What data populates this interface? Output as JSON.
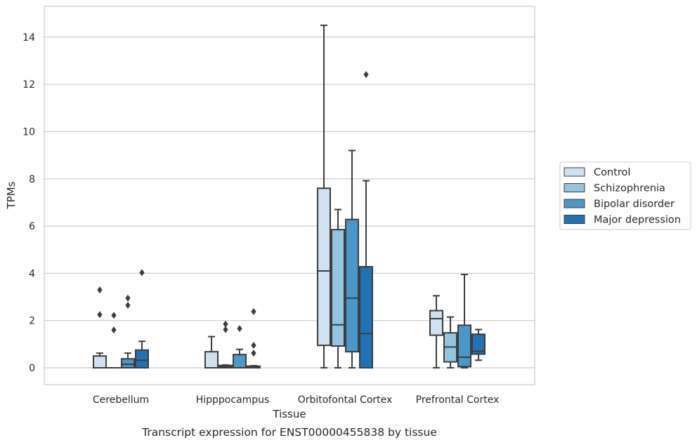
{
  "chart_data": {
    "type": "boxplot",
    "xlabel": "Tissue",
    "ylabel": "TPMs",
    "caption": "Transcript expression for ENST00000455838 by tissue",
    "ylim": [
      -0.7,
      15.3
    ],
    "yticks": [
      0,
      2,
      4,
      6,
      8,
      10,
      12,
      14
    ],
    "grid": "horizontal",
    "legend_position": "right",
    "categories": [
      "Cerebellum",
      "Hipppocampus",
      "Orbitofontal Cortex",
      "Prefrontal Cortex"
    ],
    "series": [
      {
        "name": "Control",
        "color": "#d0e1f2",
        "boxes": [
          {
            "whislo": 0,
            "q1": 0,
            "med": 0,
            "q3": 0.5,
            "whishi": 0.62,
            "fliers": [
              2.25,
              3.3
            ]
          },
          {
            "whislo": 0,
            "q1": 0,
            "med": 0,
            "q3": 0.68,
            "whishi": 1.32,
            "fliers": []
          },
          {
            "whislo": 0,
            "q1": 0.95,
            "med": 4.1,
            "q3": 7.6,
            "whishi": 14.5,
            "fliers": []
          },
          {
            "whislo": 0,
            "q1": 1.38,
            "med": 2.08,
            "q3": 2.42,
            "whishi": 3.05,
            "fliers": []
          }
        ]
      },
      {
        "name": "Schizophrenia",
        "color": "#94c4df",
        "boxes": [
          {
            "whislo": 0,
            "q1": 0,
            "med": 0,
            "q3": 0,
            "whishi": 0,
            "fliers": [
              1.6,
              2.22
            ]
          },
          {
            "whislo": 0,
            "q1": 0,
            "med": 0.05,
            "q3": 0.1,
            "whishi": 0.12,
            "fliers": [
              1.62,
              1.85
            ]
          },
          {
            "whislo": 0,
            "q1": 0.92,
            "med": 1.82,
            "q3": 5.85,
            "whishi": 6.7,
            "fliers": []
          },
          {
            "whislo": 0,
            "q1": 0.25,
            "med": 0.88,
            "q3": 1.48,
            "whishi": 2.15,
            "fliers": []
          }
        ]
      },
      {
        "name": "Bipolar disorder",
        "color": "#4a98c9",
        "boxes": [
          {
            "whislo": 0,
            "q1": 0,
            "med": 0.15,
            "q3": 0.38,
            "whishi": 0.62,
            "fliers": [
              2.65,
              2.95
            ]
          },
          {
            "whislo": 0,
            "q1": 0,
            "med": 0,
            "q3": 0.56,
            "whishi": 0.78,
            "fliers": [
              1.66
            ]
          },
          {
            "whislo": 0,
            "q1": 0.68,
            "med": 2.95,
            "q3": 6.28,
            "whishi": 9.2,
            "fliers": []
          },
          {
            "whislo": 0,
            "q1": 0.05,
            "med": 0.45,
            "q3": 1.8,
            "whishi": 3.95,
            "fliers": []
          }
        ]
      },
      {
        "name": "Major depression",
        "color": "#2171b5",
        "boxes": [
          {
            "whislo": 0,
            "q1": 0,
            "med": 0.32,
            "q3": 0.75,
            "whishi": 1.12,
            "fliers": [
              4.03
            ]
          },
          {
            "whislo": 0,
            "q1": 0,
            "med": 0.03,
            "q3": 0.07,
            "whishi": 0.09,
            "fliers": [
              0.62,
              0.95,
              2.38
            ]
          },
          {
            "whislo": 0,
            "q1": 0,
            "med": 1.45,
            "q3": 4.28,
            "whishi": 7.92,
            "fliers": [
              12.42
            ]
          },
          {
            "whislo": 0.32,
            "q1": 0.58,
            "med": 0.7,
            "q3": 1.42,
            "whishi": 1.62,
            "fliers": []
          }
        ]
      }
    ]
  }
}
